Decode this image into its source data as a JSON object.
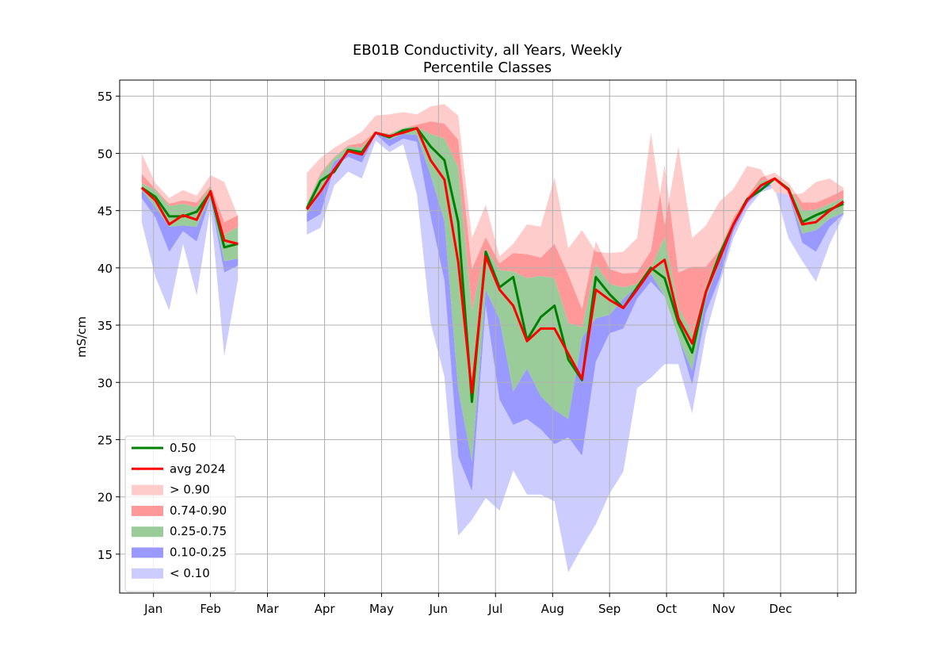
{
  "chart_data": {
    "type": "area",
    "title_line1": "EB01B Conductivity, all Years, Weekly",
    "title_line2": "Percentile Classes",
    "xlabel": "",
    "ylabel": "mS/cm",
    "ylim": [
      11.6,
      56.4
    ],
    "xlim": [
      -0.6,
      52.9
    ],
    "yticks": [
      15,
      20,
      25,
      30,
      35,
      40,
      45,
      50,
      55
    ],
    "xticks": [
      {
        "label": "Jan",
        "x": 1.86
      },
      {
        "label": "Feb",
        "x": 6.0
      },
      {
        "label": "Mar",
        "x": 10.14
      },
      {
        "label": "Apr",
        "x": 14.29
      },
      {
        "label": "May",
        "x": 18.43
      },
      {
        "label": "Jun",
        "x": 22.57
      },
      {
        "label": "Jul",
        "x": 26.71
      },
      {
        "label": "Aug",
        "x": 30.86
      },
      {
        "label": "Sep",
        "x": 35.0
      },
      {
        "label": "Oct",
        "x": 39.14
      },
      {
        "label": "Nov",
        "x": 43.29
      },
      {
        "label": "Dec",
        "x": 47.43
      },
      {
        "label": "",
        "x": 51.57
      }
    ],
    "grid": true,
    "legend_position": "lower-left",
    "colors": {
      "median": "#008000",
      "avg": "#ff0000",
      "gt90": "#ffcccc",
      "p74_90": "#ff9999",
      "p25_75": "#99cc99",
      "p10_25": "#9999ff",
      "lt10": "#ccccff",
      "grid": "#b0b0b0"
    },
    "legend": [
      {
        "label": "0.50",
        "kind": "line",
        "color": "#008000"
      },
      {
        "label": "avg 2024",
        "kind": "line",
        "color": "#ff0000"
      },
      {
        "label": "> 0.90",
        "kind": "patch",
        "color": "#ffcccc"
      },
      {
        "label": "0.74-0.90",
        "kind": "patch",
        "color": "#ff9999"
      },
      {
        "label": "0.25-0.75",
        "kind": "patch",
        "color": "#99cc99"
      },
      {
        "label": "0.10-0.25",
        "kind": "patch",
        "color": "#9999ff"
      },
      {
        "label": "< 0.10",
        "kind": "patch",
        "color": "#ccccff"
      }
    ],
    "segments": [
      {
        "x": [
          1,
          2,
          3,
          4,
          5,
          6,
          7,
          8
        ],
        "p0": [
          44.0,
          39.2,
          36.3,
          42.1,
          37.6,
          45.3,
          32.3,
          39.0
        ],
        "p10": [
          46.1,
          44.4,
          41.4,
          43.2,
          42.3,
          46.1,
          39.6,
          40.2
        ],
        "p25": [
          46.8,
          45.3,
          43.6,
          43.7,
          43.6,
          46.3,
          40.6,
          40.8
        ],
        "p50": [
          47.0,
          46.2,
          44.5,
          44.5,
          44.9,
          46.6,
          41.8,
          42.1
        ],
        "p75": [
          47.4,
          46.8,
          45.4,
          45.6,
          45.3,
          47.1,
          42.9,
          43.6
        ],
        "p90": [
          48.2,
          46.9,
          45.6,
          45.9,
          45.7,
          47.2,
          44.0,
          44.6
        ],
        "p100": [
          50.0,
          47.4,
          46.1,
          46.8,
          46.3,
          48.1,
          47.5,
          44.5
        ],
        "avg": [
          47.0,
          45.9,
          43.8,
          44.6,
          44.2,
          46.7,
          42.4,
          42.1
        ]
      },
      {
        "x": [
          13,
          14,
          15,
          16,
          17,
          18,
          19,
          20,
          21,
          22,
          23,
          24,
          25,
          26,
          27,
          28,
          29,
          30,
          31,
          32,
          33,
          34,
          35,
          36,
          37,
          38,
          39,
          40,
          41,
          42,
          43,
          44,
          45,
          46,
          47,
          48,
          49,
          50,
          51,
          52
        ],
        "p0": [
          42.9,
          43.5,
          47.2,
          48.4,
          47.8,
          51.1,
          50.1,
          50.8,
          46.4,
          35.2,
          30.5,
          16.6,
          18.0,
          19.9,
          18.8,
          22.3,
          20.2,
          20.2,
          19.6,
          13.4,
          15.6,
          17.6,
          20.3,
          22.2,
          29.5,
          30.4,
          31.6,
          31.6,
          27.3,
          34.2,
          38.6,
          42.6,
          45.1,
          46.6,
          47.0,
          42.6,
          40.6,
          38.8,
          42.1,
          44.6
        ],
        "p10": [
          44.0,
          44.7,
          48.8,
          49.7,
          49.2,
          51.7,
          50.6,
          51.3,
          51.0,
          44.5,
          38.9,
          23.5,
          20.5,
          36.7,
          28.5,
          26.3,
          26.8,
          25.9,
          24.6,
          25.2,
          23.6,
          31.8,
          34.3,
          34.7,
          37.3,
          38.8,
          37.5,
          33.9,
          29.8,
          36.1,
          39.1,
          43.2,
          45.6,
          46.8,
          47.3,
          46.5,
          42.2,
          41.4,
          43.6,
          44.7
        ],
        "p25": [
          44.7,
          46.7,
          49.3,
          50.0,
          49.9,
          51.9,
          51.2,
          51.7,
          51.6,
          48.1,
          44.1,
          29.4,
          23.1,
          38.1,
          35.5,
          29.2,
          31.2,
          28.8,
          27.6,
          26.8,
          33.9,
          35.6,
          35.9,
          37.3,
          38.4,
          39.5,
          37.5,
          33.9,
          31.0,
          37.3,
          40.5,
          43.8,
          45.9,
          47.2,
          47.6,
          46.6,
          43.0,
          43.3,
          44.3,
          44.8
        ],
        "p50": [
          45.2,
          47.6,
          48.4,
          50.3,
          50.1,
          51.8,
          51.4,
          52.0,
          52.2,
          50.6,
          49.4,
          44.0,
          28.3,
          41.4,
          38.3,
          39.2,
          33.7,
          35.7,
          36.7,
          32.0,
          30.2,
          39.2,
          37.7,
          36.5,
          38.3,
          40.0,
          39.1,
          35.2,
          32.6,
          37.9,
          41.2,
          43.8,
          46.0,
          46.8,
          47.8,
          46.9,
          44.0,
          44.6,
          45.1,
          45.6
        ],
        "p75": [
          45.6,
          48.1,
          49.6,
          50.6,
          50.5,
          51.8,
          51.8,
          52.3,
          52.3,
          51.7,
          51.3,
          48.8,
          36.3,
          41.7,
          39.8,
          39.7,
          39.1,
          39.3,
          39.1,
          35.2,
          34.8,
          40.3,
          38.6,
          38.3,
          38.6,
          40.0,
          42.7,
          36.6,
          34.2,
          38.4,
          41.1,
          43.7,
          46.0,
          47.6,
          47.8,
          47.2,
          45.0,
          45.1,
          45.6,
          46.1
        ],
        "p90": [
          45.6,
          48.3,
          49.7,
          50.7,
          50.9,
          51.9,
          51.7,
          52.2,
          52.5,
          52.8,
          52.6,
          51.2,
          39.9,
          42.7,
          40.4,
          41.3,
          41.2,
          40.9,
          42.1,
          39.4,
          36.4,
          42.3,
          39.9,
          39.5,
          39.6,
          41.5,
          48.9,
          39.6,
          40.1,
          40.1,
          41.6,
          44.4,
          46.2,
          47.9,
          48.3,
          47.4,
          45.7,
          45.7,
          46.2,
          46.8
        ],
        "p100": [
          48.3,
          49.6,
          50.5,
          51.2,
          51.9,
          53.3,
          53.4,
          53.6,
          53.4,
          54.1,
          54.3,
          53.3,
          42.6,
          45.5,
          41.0,
          42.1,
          43.8,
          43.6,
          47.9,
          41.7,
          43.3,
          41.4,
          41.3,
          41.4,
          42.6,
          51.8,
          43.7,
          50.6,
          42.6,
          43.7,
          45.8,
          46.9,
          48.9,
          48.6,
          46.6,
          46.4,
          46.5,
          47.5,
          47.8,
          47.0
        ],
        "avg": [
          45.1,
          46.7,
          48.6,
          50.2,
          49.9,
          51.8,
          51.5,
          51.8,
          52.2,
          49.4,
          47.7,
          40.5,
          29.1,
          41.0,
          38.1,
          36.7,
          33.6,
          34.7,
          34.7,
          32.5,
          30.3,
          38.1,
          37.2,
          36.5,
          38.1,
          39.8,
          40.7,
          35.6,
          33.4,
          37.9,
          40.8,
          43.8,
          45.9,
          47.2,
          47.8,
          46.8,
          43.8,
          44.0,
          45.0,
          45.8
        ]
      }
    ]
  }
}
